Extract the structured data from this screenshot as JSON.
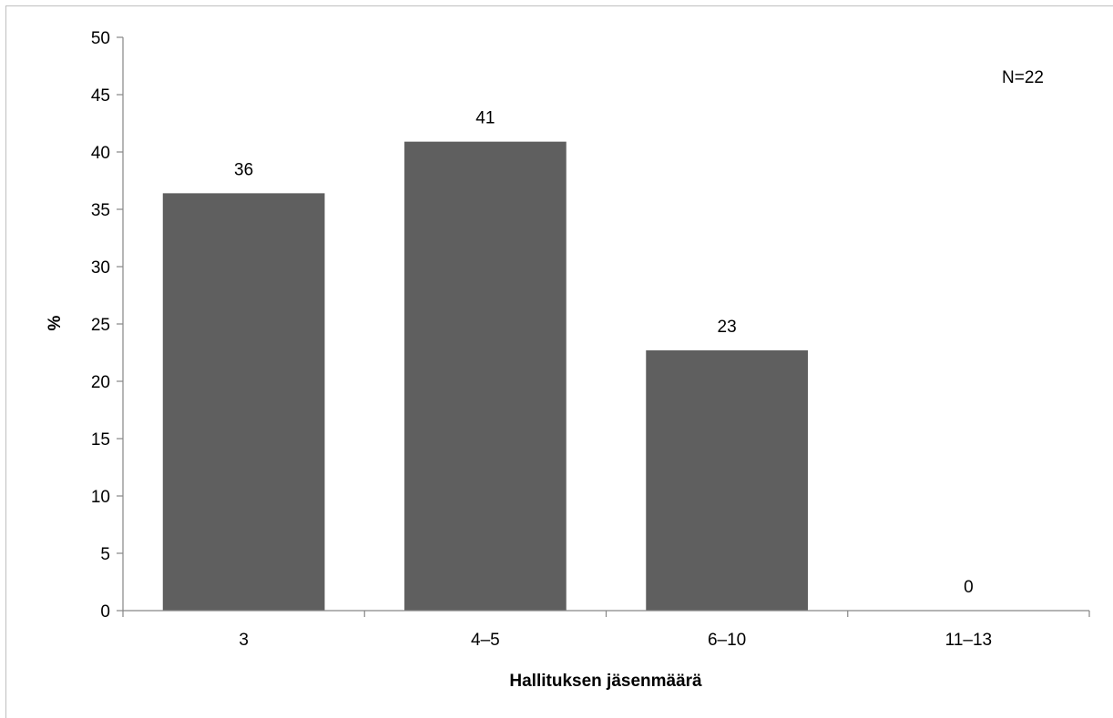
{
  "chart_data": {
    "type": "bar",
    "categories": [
      "3",
      "4–5",
      "6–10",
      "11–13"
    ],
    "values": [
      36.4,
      40.9,
      22.7,
      0
    ],
    "data_labels": [
      "36",
      "41",
      "23",
      "0"
    ],
    "title": "",
    "xlabel": "Hallituksen jäsenmäärä",
    "ylabel": "%",
    "ylim": [
      0,
      50
    ],
    "yticks": [
      "0",
      "5",
      "10",
      "15",
      "20",
      "25",
      "30",
      "35",
      "40",
      "45",
      "50"
    ],
    "annotation": "N=22",
    "grid": false,
    "legend": "none",
    "bar_color": "#5f5f5f",
    "axis_color": "#868686"
  }
}
